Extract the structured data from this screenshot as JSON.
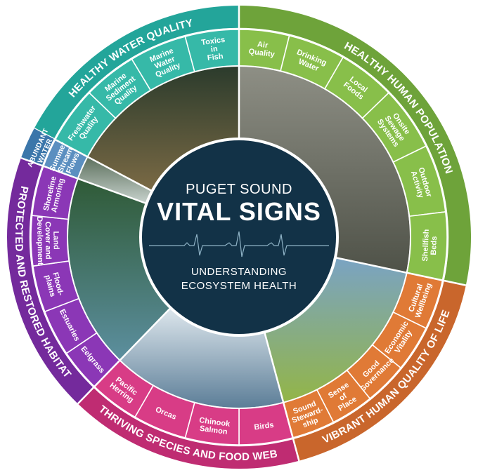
{
  "center": {
    "line1": "PUGET SOUND",
    "line2": "VITAL SIGNS",
    "line3": "UNDERSTANDING",
    "line4": "ECOSYSTEM HEALTH"
  },
  "goals": [
    {
      "id": "healthy-water-quality",
      "label": "HEALTHY WATER QUALITY",
      "color": "#23a59a",
      "color_light": "#36b9a8",
      "items": [
        [
          "Freshwater",
          "Quality"
        ],
        [
          "Marine",
          "Sediment",
          "Quality"
        ],
        [
          "Marine",
          "Water",
          "Quality"
        ],
        [
          "Toxics",
          "in",
          "Fish"
        ]
      ]
    },
    {
      "id": "healthy-human-population",
      "label": "HEALTHY HUMAN POPULATION",
      "color": "#6ea33a",
      "color_light": "#88bf4a",
      "items": [
        [
          "Air",
          "Quality"
        ],
        [
          "Drinking",
          "Water"
        ],
        [
          "Local",
          "Foods"
        ],
        [
          "Onsite",
          "Sewage",
          "Systems"
        ],
        [
          "Outdoor",
          "Activity"
        ],
        [
          "Shellfish",
          "Beds"
        ]
      ]
    },
    {
      "id": "vibrant-human-quality-of-life",
      "label": "VIBRANT HUMAN QUALITY OF LIFE",
      "color": "#c9662c",
      "color_light": "#e07a36",
      "items": [
        [
          "Cultural",
          "Wellbeing"
        ],
        [
          "Economic",
          "Vitality"
        ],
        [
          "Good",
          "Governance"
        ],
        [
          "Sense",
          "of",
          "Place"
        ],
        [
          "Sound",
          "Steward-",
          "ship"
        ]
      ]
    },
    {
      "id": "thriving-species-and-food-web",
      "label": "THRIVING SPECIES AND FOOD WEB",
      "color": "#bf2c72",
      "color_light": "#d83c86",
      "items": [
        [
          "Birds"
        ],
        [
          "Chinook",
          "Salmon"
        ],
        [
          "Orcas"
        ],
        [
          "Pacific",
          "Herring"
        ]
      ]
    },
    {
      "id": "protected-and-restored-habitat",
      "label": "PROTECTED AND RESTORED HABITAT",
      "color": "#742a9c",
      "color_light": "#8b37b6",
      "items": [
        [
          "Eelgrass"
        ],
        [
          "Estuaries"
        ],
        [
          "Flood-",
          "plains"
        ],
        [
          "Land",
          "Cover and",
          "Development"
        ],
        [
          "Shoreline",
          "Armoring"
        ]
      ]
    },
    {
      "id": "abundant-water",
      "label": "ABUNDANT WATER",
      "label_lines": [
        "ABUNDANT",
        "WATER"
      ],
      "color": "#3b76aa",
      "color_light": "#5b8fc0",
      "items": [
        [
          "Summer",
          "Stream",
          "Flows"
        ]
      ]
    }
  ]
}
